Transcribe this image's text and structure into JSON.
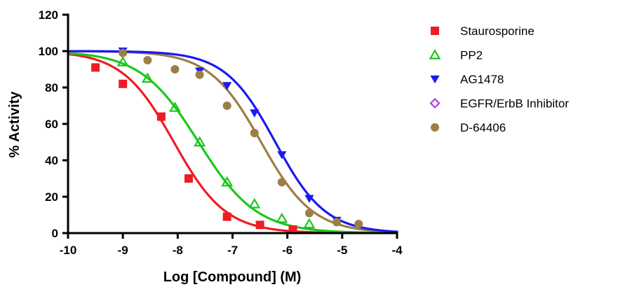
{
  "chart_data": {
    "type": "scatter",
    "xlabel": "Log [Compound] (M)",
    "ylabel": "% Activity",
    "xlim": [
      -10,
      -4
    ],
    "ylim": [
      0,
      120
    ],
    "xticks": [
      -10,
      -9,
      -8,
      -7,
      -6,
      -5,
      -4
    ],
    "yticks": [
      0,
      20,
      40,
      60,
      80,
      100,
      120
    ],
    "legend_placement": "right",
    "grid": false,
    "series": [
      {
        "name": "Staurosporine",
        "color": "#ee1c25",
        "marker": "square",
        "points": [
          [
            -9.5,
            91
          ],
          [
            -9.0,
            82
          ],
          [
            -8.3,
            64
          ],
          [
            -7.8,
            30
          ],
          [
            -7.1,
            9
          ],
          [
            -6.5,
            4.5
          ],
          [
            -5.9,
            2
          ]
        ],
        "fit": {
          "top": 100,
          "bottom": 0,
          "logEC50": -8.07,
          "hill": 0.92
        }
      },
      {
        "name": "PP2",
        "color": "#1dc71d",
        "marker": "triangle-up-open",
        "points": [
          [
            -9.0,
            94
          ],
          [
            -8.55,
            85
          ],
          [
            -8.05,
            69
          ],
          [
            -7.6,
            50
          ],
          [
            -7.1,
            28
          ],
          [
            -6.6,
            16
          ],
          [
            -6.1,
            8
          ],
          [
            -5.6,
            5
          ]
        ],
        "fit": {
          "top": 100,
          "bottom": 0,
          "logEC50": -7.62,
          "hill": 0.82
        }
      },
      {
        "name": "AG1478",
        "color": "#1a1aee",
        "marker": "triangle-down",
        "points": [
          [
            -9.0,
            100
          ],
          [
            -7.6,
            89
          ],
          [
            -7.1,
            81
          ],
          [
            -6.6,
            66
          ],
          [
            -6.1,
            43
          ],
          [
            -5.6,
            19
          ],
          [
            -5.1,
            7
          ]
        ],
        "fit": {
          "top": 100,
          "bottom": 0,
          "logEC50": -6.22,
          "hill": 0.95
        }
      },
      {
        "name": "EGFR/ErbB Inhibitor",
        "color": "#b23ce6",
        "marker": "diamond-open",
        "points": [],
        "fit": null
      },
      {
        "name": "D-64406",
        "color": "#9c7e46",
        "marker": "circle",
        "points": [
          [
            -9.0,
            99
          ],
          [
            -8.55,
            95
          ],
          [
            -8.05,
            90
          ],
          [
            -7.6,
            87
          ],
          [
            -7.1,
            70
          ],
          [
            -6.6,
            55
          ],
          [
            -6.1,
            28
          ],
          [
            -5.6,
            11
          ],
          [
            -5.1,
            6
          ],
          [
            -4.7,
            5
          ]
        ],
        "fit": {
          "top": 100,
          "bottom": 0,
          "logEC50": -6.48,
          "hill": 0.92
        }
      }
    ]
  }
}
